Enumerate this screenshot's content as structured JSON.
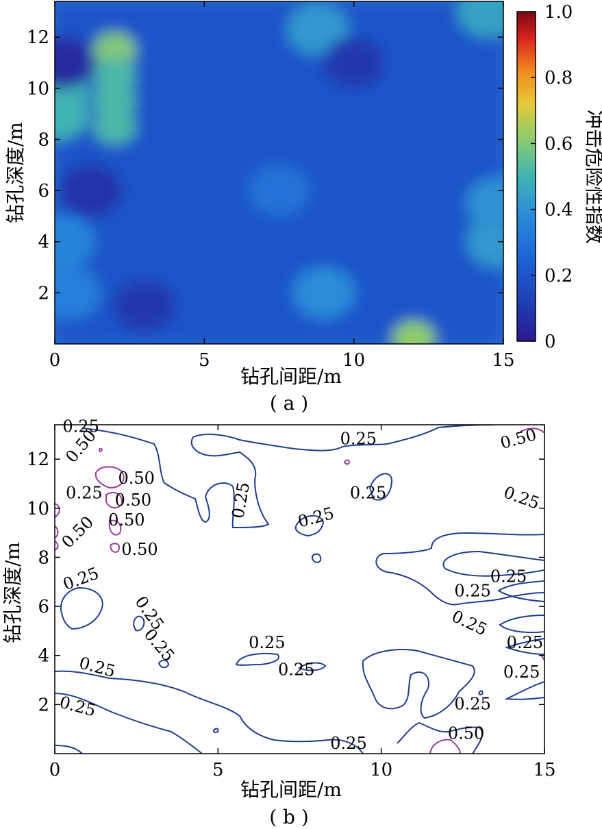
{
  "chart_data": [
    {
      "panel": "(a)",
      "type": "heatmap",
      "caption": "( a )",
      "xlabel": "钻孔间距/m",
      "ylabel": "钻孔深度/m",
      "xlim": [
        0,
        15
      ],
      "ylim": [
        0,
        13.4
      ],
      "xticks": [
        "0",
        "5",
        "10",
        "15"
      ],
      "yticks": [
        "2",
        "4",
        "6",
        "8",
        "10",
        "12"
      ],
      "colorbar": {
        "label": "冲击危险性指数",
        "range": [
          0,
          1.0
        ],
        "ticks": [
          "0",
          "0.2",
          "0.4",
          "0.6",
          "0.8",
          "1.0"
        ],
        "colormap": "parula"
      },
      "base_value": 0.2,
      "features": [
        {
          "x": 12.0,
          "y": 0.2,
          "value": 0.62
        },
        {
          "x": 2.0,
          "y": 11.5,
          "value": 0.6
        },
        {
          "x": 2.0,
          "y": 10.5,
          "value": 0.52
        },
        {
          "x": 2.0,
          "y": 9.5,
          "value": 0.52
        },
        {
          "x": 2.0,
          "y": 8.5,
          "value": 0.52
        },
        {
          "x": 0.1,
          "y": 10.0,
          "value": 0.5
        },
        {
          "x": 0.1,
          "y": 9.0,
          "value": 0.5
        },
        {
          "x": 0.3,
          "y": 11.0,
          "value": 0.05
        },
        {
          "x": 14.5,
          "y": 13.0,
          "value": 0.45
        },
        {
          "x": 14.8,
          "y": 4.0,
          "value": 0.42
        },
        {
          "x": 14.8,
          "y": 5.5,
          "value": 0.4
        },
        {
          "x": 8.8,
          "y": 12.3,
          "value": 0.42
        },
        {
          "x": 9.0,
          "y": 2.0,
          "value": 0.38
        },
        {
          "x": 1.2,
          "y": 6.0,
          "value": 0.08
        },
        {
          "x": 3.0,
          "y": 1.5,
          "value": 0.1
        },
        {
          "x": 10.0,
          "y": 11.0,
          "value": 0.1
        },
        {
          "x": 7.5,
          "y": 6.0,
          "value": 0.3
        },
        {
          "x": 0.3,
          "y": 4.0,
          "value": 0.36
        },
        {
          "x": 0.5,
          "y": 2.0,
          "value": 0.34
        }
      ]
    },
    {
      "panel": "(b)",
      "type": "contour",
      "caption": "( b )",
      "xlabel": "钻孔间距/m",
      "ylabel": "钻孔深度/m",
      "xlim": [
        0,
        15
      ],
      "ylim": [
        0,
        13.4
      ],
      "xticks": [
        "0",
        "5",
        "10",
        "15"
      ],
      "yticks": [
        "2",
        "4",
        "6",
        "8",
        "10",
        "12"
      ],
      "levels": [
        0.25,
        0.5
      ],
      "level_colors": {
        "0.25": "#1f3d8c",
        "0.50": "#9c3c9c"
      },
      "labels": [
        {
          "text": "0.25",
          "x": 0.8,
          "y": 13.1,
          "angle": 0
        },
        {
          "text": "0.50",
          "x": 0.8,
          "y": 12.3,
          "angle": -50
        },
        {
          "text": "0.50",
          "x": 2.5,
          "y": 11.0,
          "angle": 0
        },
        {
          "text": "0.25",
          "x": 0.9,
          "y": 10.4,
          "angle": 0
        },
        {
          "text": "0.50",
          "x": 2.4,
          "y": 10.1,
          "angle": 0
        },
        {
          "text": "0.50",
          "x": 2.2,
          "y": 9.3,
          "angle": 0
        },
        {
          "text": "0.50",
          "x": 0.7,
          "y": 8.8,
          "angle": -45
        },
        {
          "text": "0.50",
          "x": 2.6,
          "y": 8.1,
          "angle": 0
        },
        {
          "text": "0.25",
          "x": 0.8,
          "y": 6.9,
          "angle": -20
        },
        {
          "text": "0.25",
          "x": 2.9,
          "y": 5.5,
          "angle": 55
        },
        {
          "text": "0.25",
          "x": 5.7,
          "y": 10.1,
          "angle": -80
        },
        {
          "text": "0.25",
          "x": 8.0,
          "y": 9.4,
          "angle": -15
        },
        {
          "text": "0.25",
          "x": 9.3,
          "y": 12.6,
          "angle": 0
        },
        {
          "text": "0.25",
          "x": 9.6,
          "y": 10.4,
          "angle": 0
        },
        {
          "text": "0.50",
          "x": 14.2,
          "y": 12.6,
          "angle": -15
        },
        {
          "text": "0.25",
          "x": 14.3,
          "y": 10.2,
          "angle": 20
        },
        {
          "text": "0.25",
          "x": 13.9,
          "y": 7.0,
          "angle": 0
        },
        {
          "text": "0.25",
          "x": 12.8,
          "y": 6.4,
          "angle": 0
        },
        {
          "text": "0.25",
          "x": 12.7,
          "y": 5.1,
          "angle": 25
        },
        {
          "text": "0.25",
          "x": 14.4,
          "y": 4.3,
          "angle": 0
        },
        {
          "text": "0.25",
          "x": 14.3,
          "y": 3.1,
          "angle": 0
        },
        {
          "text": "0.25",
          "x": 12.8,
          "y": 1.8,
          "angle": 0
        },
        {
          "text": "0.50",
          "x": 12.6,
          "y": 0.6,
          "angle": 0
        },
        {
          "text": "0.25",
          "x": 3.2,
          "y": 4.2,
          "angle": 50
        },
        {
          "text": "0.25",
          "x": 1.3,
          "y": 3.3,
          "angle": 15
        },
        {
          "text": "0.25",
          "x": 0.7,
          "y": 1.7,
          "angle": 15
        },
        {
          "text": "0.25",
          "x": 6.5,
          "y": 4.3,
          "angle": 0
        },
        {
          "text": "0.25",
          "x": 7.4,
          "y": 3.2,
          "angle": 0
        },
        {
          "text": "0.25",
          "x": 9.0,
          "y": 0.2,
          "angle": 0
        }
      ]
    }
  ]
}
